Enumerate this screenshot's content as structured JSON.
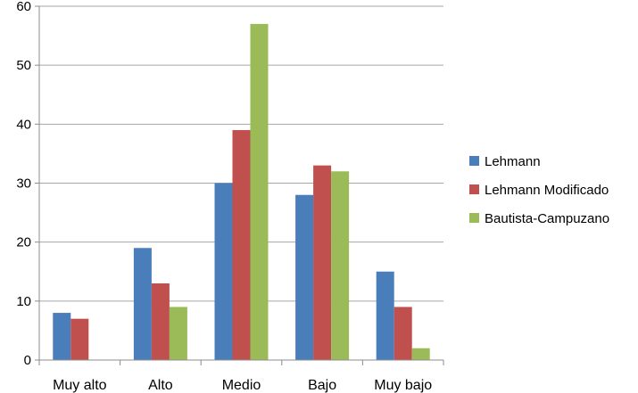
{
  "chart_data": {
    "type": "bar",
    "categories": [
      "Muy alto",
      "Alto",
      "Medio",
      "Bajo",
      "Muy bajo"
    ],
    "series": [
      {
        "name": "Lehmann",
        "values": [
          8,
          19,
          30,
          28,
          15
        ]
      },
      {
        "name": "Lehmann Modificado",
        "values": [
          7,
          13,
          39,
          33,
          9
        ]
      },
      {
        "name": "Bautista-Campuzano",
        "values": [
          0,
          9,
          57,
          32,
          2
        ]
      }
    ],
    "ylim": [
      0,
      60
    ],
    "yticks": [
      0,
      10,
      20,
      30,
      40,
      50,
      60
    ],
    "grid": true,
    "legend_position": "right",
    "colors": [
      "#4a7ebb",
      "#c0504d",
      "#9bbb59"
    ]
  }
}
